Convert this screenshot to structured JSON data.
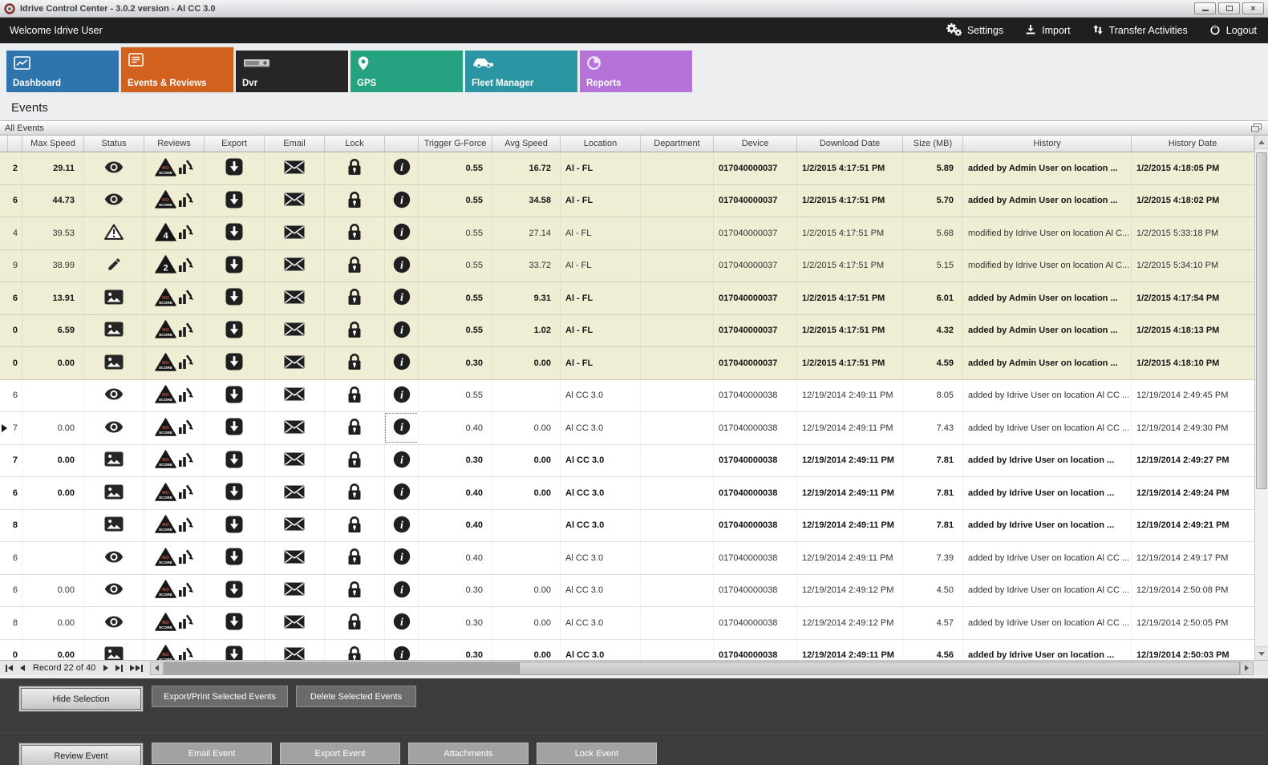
{
  "window": {
    "title": "Idrive Control Center - 3.0.2 version - Al CC 3.0",
    "controls": {
      "minimize": "minimize",
      "maximize": "maximize",
      "close": "close"
    }
  },
  "menubar": {
    "welcome": "Welcome Idrive User",
    "actions": [
      {
        "label": "Settings",
        "icon": "gears-icon"
      },
      {
        "label": "Import",
        "icon": "import-icon"
      },
      {
        "label": "Transfer Activities",
        "icon": "transfer-icon"
      },
      {
        "label": "Logout",
        "icon": "power-icon"
      }
    ]
  },
  "tabs": [
    {
      "label": "Dashboard",
      "icon": "chart-tile-icon",
      "color": "#2e74ad",
      "active": false
    },
    {
      "label": "Events & Reviews",
      "icon": "list-tile-icon",
      "color": "#d2611e",
      "active": true
    },
    {
      "label": "Dvr",
      "icon": "dvr-tile-icon",
      "color": "#262626",
      "active": false
    },
    {
      "label": "GPS",
      "icon": "pin-tile-icon",
      "color": "#25a380",
      "active": false
    },
    {
      "label": "Fleet Manager",
      "icon": "car-tile-icon",
      "color": "#2b95a3",
      "active": false
    },
    {
      "label": "Reports",
      "icon": "pie-tile-icon",
      "color": "#b573d9",
      "active": false
    }
  ],
  "page_title": "Events",
  "panel_title": "All Events",
  "grid": {
    "columns": [
      "Max Speed",
      "Status",
      "Reviews",
      "Export",
      "Email",
      "Lock",
      "",
      "Trigger G-Force",
      "Avg Speed",
      "Location",
      "Department",
      "Device",
      "Download Date",
      "Size (MB)",
      "History",
      "History Date"
    ],
    "rows": [
      {
        "id": "2",
        "max_speed": "29.11",
        "status": "eye-icon",
        "review": "NO SCORE",
        "trigger": "0.55",
        "avg_speed": "16.72",
        "location": "Al - FL",
        "department": "",
        "device": "017040000037",
        "download_date": "1/2/2015 4:17:51 PM",
        "size": "5.89",
        "history": "added by Admin User on location ...",
        "history_date": "1/2/2015 4:18:05 PM",
        "bold": true,
        "beige": true,
        "current": false,
        "focus_info": false
      },
      {
        "id": "6",
        "max_speed": "44.73",
        "status": "eye-icon",
        "review": "NO SCORE",
        "trigger": "0.55",
        "avg_speed": "34.58",
        "location": "Al - FL",
        "department": "",
        "device": "017040000037",
        "download_date": "1/2/2015 4:17:51 PM",
        "size": "5.70",
        "history": "added by Admin User on location ...",
        "history_date": "1/2/2015 4:18:02 PM",
        "bold": true,
        "beige": true,
        "current": false,
        "focus_info": false
      },
      {
        "id": "4",
        "max_speed": "39.53",
        "status": "warning-icon",
        "review": "4",
        "trigger": "0.55",
        "avg_speed": "27.14",
        "location": "Al - FL",
        "department": "",
        "device": "017040000037",
        "download_date": "1/2/2015 4:17:51 PM",
        "size": "5.68",
        "history": "modified by Idrive User on location Al C...",
        "history_date": "1/2/2015 5:33:18 PM",
        "bold": false,
        "beige": true,
        "current": false,
        "focus_info": false
      },
      {
        "id": "9",
        "max_speed": "38.99",
        "status": "pencil-icon",
        "review": "2",
        "trigger": "0.55",
        "avg_speed": "33.72",
        "location": "Al - FL",
        "department": "",
        "device": "017040000037",
        "download_date": "1/2/2015 4:17:51 PM",
        "size": "5.15",
        "history": "modified by Idrive User on location Al C...",
        "history_date": "1/2/2015 5:34:10 PM",
        "bold": false,
        "beige": true,
        "current": false,
        "focus_info": false
      },
      {
        "id": "6",
        "max_speed": "13.91",
        "status": "image-icon",
        "review": "NO SCORE",
        "trigger": "0.55",
        "avg_speed": "9.31",
        "location": "Al - FL",
        "department": "",
        "device": "017040000037",
        "download_date": "1/2/2015 4:17:51 PM",
        "size": "6.01",
        "history": "added by Admin User on location ...",
        "history_date": "1/2/2015 4:17:54 PM",
        "bold": true,
        "beige": true,
        "current": false,
        "focus_info": false
      },
      {
        "id": "0",
        "max_speed": "6.59",
        "status": "image-icon",
        "review": "NO SCORE",
        "trigger": "0.55",
        "avg_speed": "1.02",
        "location": "Al - FL",
        "department": "",
        "device": "017040000037",
        "download_date": "1/2/2015 4:17:51 PM",
        "size": "4.32",
        "history": "added by Admin User on location ...",
        "history_date": "1/2/2015 4:18:13 PM",
        "bold": true,
        "beige": true,
        "current": false,
        "focus_info": false
      },
      {
        "id": "0",
        "max_speed": "0.00",
        "status": "image-icon",
        "review": "NO SCORE",
        "trigger": "0.30",
        "avg_speed": "0.00",
        "location": "Al - FL",
        "department": "",
        "device": "017040000037",
        "download_date": "1/2/2015 4:17:51 PM",
        "size": "4.59",
        "history": "added by Admin User on location ...",
        "history_date": "1/2/2015 4:18:10 PM",
        "bold": true,
        "beige": true,
        "current": false,
        "focus_info": false
      },
      {
        "id": "6",
        "max_speed": "",
        "status": "eye-icon",
        "review": "NO SCORE",
        "trigger": "0.55",
        "avg_speed": "",
        "location": "Al CC 3.0",
        "department": "",
        "device": "017040000038",
        "download_date": "12/19/2014 2:49:11 PM",
        "size": "8.05",
        "history": "added by Idrive User on location Al CC ...",
        "history_date": "12/19/2014 2:49:45 PM",
        "bold": false,
        "beige": false,
        "current": false,
        "focus_info": false
      },
      {
        "id": "7",
        "max_speed": "0.00",
        "status": "eye-icon",
        "review": "NO SCORE",
        "trigger": "0.40",
        "avg_speed": "0.00",
        "location": "Al CC 3.0",
        "department": "",
        "device": "017040000038",
        "download_date": "12/19/2014 2:49:11 PM",
        "size": "7.43",
        "history": "added by Idrive User on location Al CC ...",
        "history_date": "12/19/2014 2:49:30 PM",
        "bold": false,
        "beige": false,
        "current": true,
        "focus_info": true
      },
      {
        "id": "7",
        "max_speed": "0.00",
        "status": "image-icon",
        "review": "NO SCORE",
        "trigger": "0.30",
        "avg_speed": "0.00",
        "location": "Al CC 3.0",
        "department": "",
        "device": "017040000038",
        "download_date": "12/19/2014 2:49:11 PM",
        "size": "7.81",
        "history": "added by Idrive User on location ...",
        "history_date": "12/19/2014 2:49:27 PM",
        "bold": true,
        "beige": false,
        "current": false,
        "focus_info": false
      },
      {
        "id": "6",
        "max_speed": "0.00",
        "status": "image-icon",
        "review": "NO SCORE",
        "trigger": "0.40",
        "avg_speed": "0.00",
        "location": "Al CC 3.0",
        "department": "",
        "device": "017040000038",
        "download_date": "12/19/2014 2:49:11 PM",
        "size": "7.81",
        "history": "added by Idrive User on location ...",
        "history_date": "12/19/2014 2:49:24 PM",
        "bold": true,
        "beige": false,
        "current": false,
        "focus_info": false
      },
      {
        "id": "8",
        "max_speed": "",
        "status": "image-icon",
        "review": "NO SCORE",
        "trigger": "0.40",
        "avg_speed": "",
        "location": "Al CC 3.0",
        "department": "",
        "device": "017040000038",
        "download_date": "12/19/2014 2:49:11 PM",
        "size": "7.81",
        "history": "added by Idrive User on location ...",
        "history_date": "12/19/2014 2:49:21 PM",
        "bold": true,
        "beige": false,
        "current": false,
        "focus_info": false
      },
      {
        "id": "6",
        "max_speed": "",
        "status": "eye-icon",
        "review": "NO SCORE",
        "trigger": "0.40",
        "avg_speed": "",
        "location": "Al CC 3.0",
        "department": "",
        "device": "017040000038",
        "download_date": "12/19/2014 2:49:11 PM",
        "size": "7.39",
        "history": "added by Idrive User on location Al CC ...",
        "history_date": "12/19/2014 2:49:17 PM",
        "bold": false,
        "beige": false,
        "current": false,
        "focus_info": false
      },
      {
        "id": "6",
        "max_speed": "0.00",
        "status": "eye-icon",
        "review": "NO SCORE",
        "trigger": "0.30",
        "avg_speed": "0.00",
        "location": "Al CC 3.0",
        "department": "",
        "device": "017040000038",
        "download_date": "12/19/2014 2:49:12 PM",
        "size": "4.50",
        "history": "added by Idrive User on location Al CC ...",
        "history_date": "12/19/2014 2:50:08 PM",
        "bold": false,
        "beige": false,
        "current": false,
        "focus_info": false
      },
      {
        "id": "8",
        "max_speed": "0.00",
        "status": "eye-icon",
        "review": "NO SCORE",
        "trigger": "0.30",
        "avg_speed": "0.00",
        "location": "Al CC 3.0",
        "department": "",
        "device": "017040000038",
        "download_date": "12/19/2014 2:49:12 PM",
        "size": "4.57",
        "history": "added by Idrive User on location Al CC ...",
        "history_date": "12/19/2014 2:50:05 PM",
        "bold": false,
        "beige": false,
        "current": false,
        "focus_info": false
      },
      {
        "id": "0",
        "max_speed": "0.00",
        "status": "image-icon",
        "review": "NO SCORE",
        "trigger": "0.30",
        "avg_speed": "0.00",
        "location": "Al CC 3.0",
        "department": "",
        "device": "017040000038",
        "download_date": "12/19/2014 2:49:11 PM",
        "size": "4.56",
        "history": "added by Idrive User on location ...",
        "history_date": "12/19/2014 2:50:03 PM",
        "bold": true,
        "beige": false,
        "current": false,
        "focus_info": false
      }
    ]
  },
  "navigator": {
    "record_text": "Record 22 of 40"
  },
  "action_bar": {
    "row1": [
      "Hide Selection",
      "Export/Print Selected Events",
      "Delete Selected  Events"
    ],
    "row2": [
      "Review Event",
      "Email Event",
      "Export Event",
      "Attachments",
      "Lock Event"
    ]
  }
}
